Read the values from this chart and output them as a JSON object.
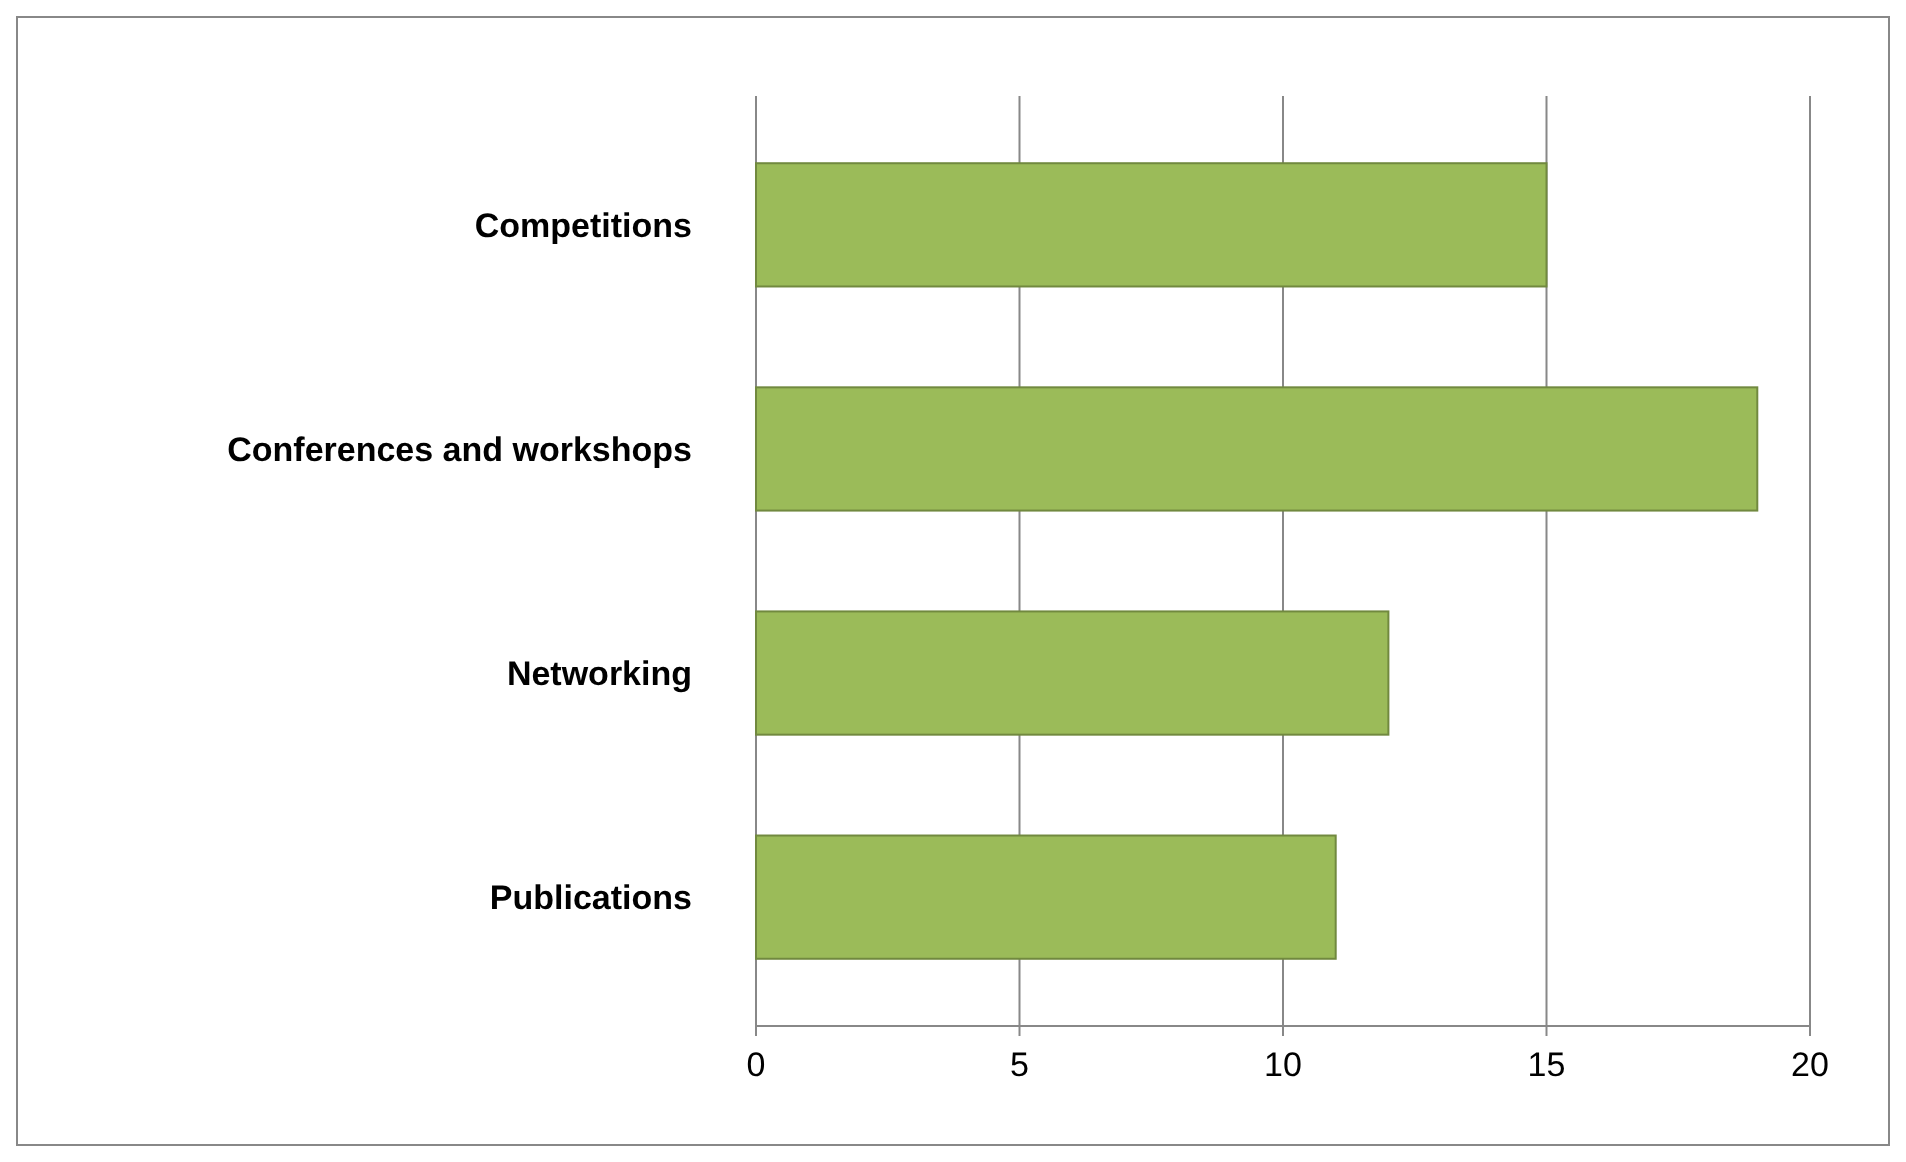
{
  "chart_data": {
    "type": "bar",
    "orientation": "horizontal",
    "categories": [
      "Competitions",
      "Conferences and workshops",
      "Networking",
      "Publications"
    ],
    "values": [
      15,
      19,
      12,
      11
    ],
    "color": "#9bbb59",
    "xlim": [
      0,
      20
    ],
    "xticks": [
      0,
      5,
      10,
      15,
      20
    ],
    "grid": "x"
  }
}
